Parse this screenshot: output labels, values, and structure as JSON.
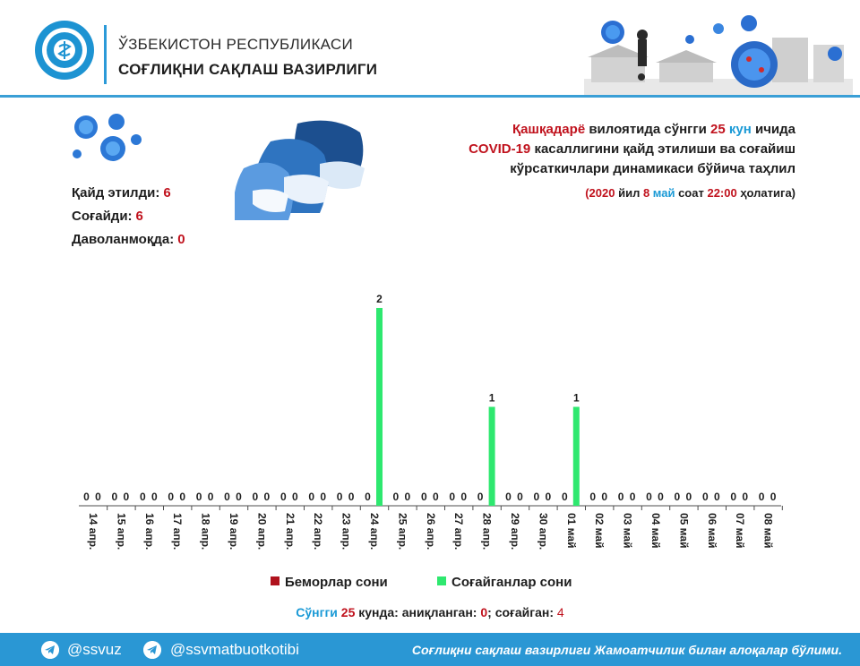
{
  "header": {
    "ministry_line1": "ЎЗБЕКИСТОН РЕСПУБЛИКАСИ",
    "ministry_line2": "СОҒЛИҚНИ САҚЛАШ ВАЗИРЛИГИ"
  },
  "stats": {
    "registered_label": "Қайд этилди:",
    "registered_value": "6",
    "recovered_label": "Соғайди:",
    "recovered_value": "6",
    "treating_label": "Даволанмоқда:",
    "treating_value": "0"
  },
  "title": {
    "region": "Қашқадарё",
    "p1": " вилоятида сўнгги ",
    "days": "25",
    "unit": " кун",
    "p2": " ичида",
    "covid": "COVID-19",
    "p3": " касаллигини қайд этилиши ва соғайиш",
    "line3": "кўрсаткичлари динамикаси бўйича таҳлил"
  },
  "asof": {
    "open": "(",
    "year": "2020",
    "t1": " йил ",
    "day": "8",
    "t2": " ",
    "month": "май",
    "t3": " соат ",
    "time": "22:00",
    "t4": " ҳолатига)"
  },
  "chart_data": {
    "type": "bar",
    "categories": [
      "14 апр.",
      "15 апр.",
      "16 апр.",
      "17 апр.",
      "18 апр.",
      "19 апр.",
      "20 апр.",
      "21 апр.",
      "22 апр.",
      "23 апр.",
      "24 апр.",
      "25 апр.",
      "26 апр.",
      "27 апр.",
      "28 апр.",
      "29 апр.",
      "30 апр.",
      "01 май",
      "02 май",
      "03 май",
      "04 май",
      "05 май",
      "06 май",
      "07 май",
      "08 май"
    ],
    "series": [
      {
        "name": "Беморлар сони",
        "color": "#b0121d",
        "values": [
          0,
          0,
          0,
          0,
          0,
          0,
          0,
          0,
          0,
          0,
          0,
          0,
          0,
          0,
          0,
          0,
          0,
          0,
          0,
          0,
          0,
          0,
          0,
          0,
          0
        ]
      },
      {
        "name": "Соғайганлар сони",
        "color": "#2ee86f",
        "values": [
          0,
          0,
          0,
          0,
          0,
          0,
          0,
          0,
          0,
          0,
          2,
          0,
          0,
          0,
          1,
          0,
          0,
          1,
          0,
          0,
          0,
          0,
          0,
          0,
          0
        ]
      }
    ],
    "ylim": [
      0,
      2
    ],
    "grid": false,
    "legend_position": "bottom"
  },
  "summary": {
    "prefix": "Сўнгги ",
    "days": "25",
    "s1": " кунда: аниқланган: ",
    "detected": "0",
    "s2": "; соғайган: ",
    "recovered": "4"
  },
  "footer": {
    "handle1": "@ssvuz",
    "handle2": "@ssvmatbuotkotibi",
    "note": "Соғлиқни сақлаш вазирлиги Жамоатчилик билан алоқалар бўлими."
  },
  "icons": {
    "emblem": "ministry-emblem-icon",
    "telegram": "telegram-icon",
    "virus": "virus-icon",
    "people": "masked-people-icon"
  }
}
